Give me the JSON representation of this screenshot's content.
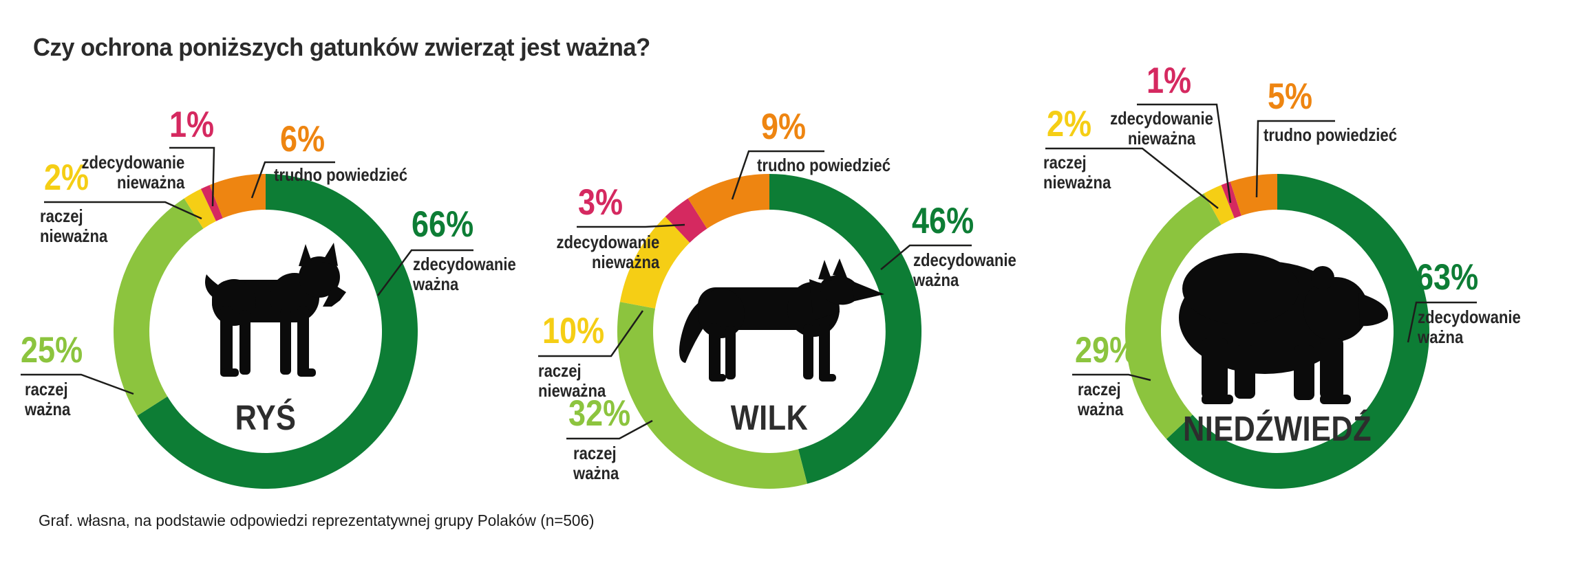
{
  "title": "Czy ochrona poniższych gatunków zwierząt jest ważna?",
  "footer": "Graf. własna, na podstawie odpowiedzi reprezentatywnej grupy Polaków (n=506)",
  "colors": {
    "dark_green": "#0D7D35",
    "light_green": "#8CC43E",
    "yellow": "#F5CE15",
    "pink": "#D52960",
    "orange": "#EE8511",
    "label_text": "#262626",
    "title_text": "#2B2B2B",
    "leader_line": "#1D1D1B",
    "silhouette": "#0B0B0B"
  },
  "chart_data": {
    "type": "pie",
    "subtype": "donut",
    "unit": "%",
    "title": "Czy ochrona poniższych gatunków zwierząt jest ważna?",
    "source_note": "Graf. własna, na podstawie odpowiedzi reprezentatywnej grupy Polaków (n=506)",
    "sample_size": "n=506",
    "categories": [
      "zdecydowanie ważna",
      "raczej ważna",
      "raczej nieważna",
      "zdecydowanie nieważna",
      "trudno powiedzieć"
    ],
    "charts": [
      {
        "animal": "RYŚ",
        "segments": [
          {
            "label": "zdecydowanie ważna",
            "label_lines": [
              "zdecydowanie",
              "ważna"
            ],
            "value": 66,
            "value_label": "66%",
            "color_key": "dark_green"
          },
          {
            "label": "raczej ważna",
            "label_lines": [
              "raczej",
              "ważna"
            ],
            "value": 25,
            "value_label": "25%",
            "color_key": "light_green"
          },
          {
            "label": "raczej nieważna",
            "label_lines": [
              "raczej",
              "nieważna"
            ],
            "value": 2,
            "value_label": "2%",
            "color_key": "yellow"
          },
          {
            "label": "zdecydowanie nieważna",
            "label_lines": [
              "zdecydowanie",
              "nieważna"
            ],
            "value": 1,
            "value_label": "1%",
            "color_key": "pink"
          },
          {
            "label": "trudno powiedzieć",
            "label_lines": [
              "trudno powiedzieć"
            ],
            "value": 6,
            "value_label": "6%",
            "color_key": "orange"
          }
        ]
      },
      {
        "animal": "WILK",
        "segments": [
          {
            "label": "zdecydowanie ważna",
            "label_lines": [
              "zdecydowanie",
              "ważna"
            ],
            "value": 46,
            "value_label": "46%",
            "color_key": "dark_green"
          },
          {
            "label": "raczej ważna",
            "label_lines": [
              "raczej",
              "ważna"
            ],
            "value": 32,
            "value_label": "32%",
            "color_key": "light_green"
          },
          {
            "label": "raczej nieważna",
            "label_lines": [
              "raczej",
              "nieważna"
            ],
            "value": 10,
            "value_label": "10%",
            "color_key": "yellow"
          },
          {
            "label": "zdecydowanie nieważna",
            "label_lines": [
              "zdecydowanie",
              "nieważna"
            ],
            "value": 3,
            "value_label": "3%",
            "color_key": "pink"
          },
          {
            "label": "trudno powiedzieć",
            "label_lines": [
              "trudno powiedzieć"
            ],
            "value": 9,
            "value_label": "9%",
            "color_key": "orange"
          }
        ]
      },
      {
        "animal": "NIEDŹWIEDŹ",
        "segments": [
          {
            "label": "zdecydowanie ważna",
            "label_lines": [
              "zdecydowanie",
              "ważna"
            ],
            "value": 63,
            "value_label": "63%",
            "color_key": "dark_green"
          },
          {
            "label": "raczej ważna",
            "label_lines": [
              "raczej",
              "ważna"
            ],
            "value": 29,
            "value_label": "29%",
            "color_key": "light_green"
          },
          {
            "label": "raczej nieważna",
            "label_lines": [
              "raczej",
              "nieważna"
            ],
            "value": 2,
            "value_label": "2%",
            "color_key": "yellow"
          },
          {
            "label": "zdecydowanie nieważna",
            "label_lines": [
              "zdecydowanie",
              "nieważna"
            ],
            "value": 1,
            "value_label": "1%",
            "color_key": "pink"
          },
          {
            "label": "trudno powiedzieć",
            "label_lines": [
              "trudno powiedzieć"
            ],
            "value": 5,
            "value_label": "5%",
            "color_key": "orange"
          }
        ]
      }
    ],
    "layout_hints": {
      "start_angle": "12 o'clock, clockwise",
      "legend_position": "callout labels with leader lines around each donut",
      "grid": "off"
    }
  }
}
